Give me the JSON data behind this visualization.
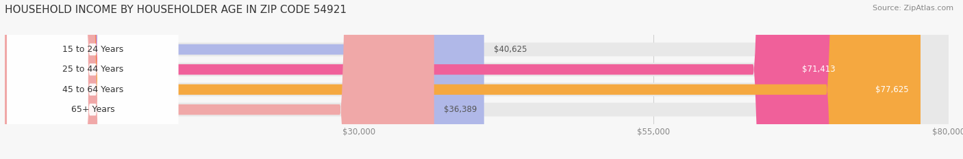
{
  "title": "HOUSEHOLD INCOME BY HOUSEHOLDER AGE IN ZIP CODE 54921",
  "source": "Source: ZipAtlas.com",
  "categories": [
    "15 to 24 Years",
    "25 to 44 Years",
    "45 to 64 Years",
    "65+ Years"
  ],
  "values": [
    40625,
    71413,
    77625,
    36389
  ],
  "labels": [
    "$40,625",
    "$71,413",
    "$77,625",
    "$36,389"
  ],
  "bar_colors": [
    "#b0b8e8",
    "#f0609a",
    "#f5a840",
    "#f0a8a8"
  ],
  "bar_track_color": "#e8e8e8",
  "xmin": 0,
  "xmax": 80000,
  "xticks": [
    30000,
    55000,
    80000
  ],
  "xtick_labels": [
    "$30,000",
    "$55,000",
    "$80,000"
  ],
  "background_color": "#f7f7f7",
  "title_fontsize": 11,
  "source_fontsize": 8,
  "label_fontsize": 8.5,
  "category_fontsize": 9
}
